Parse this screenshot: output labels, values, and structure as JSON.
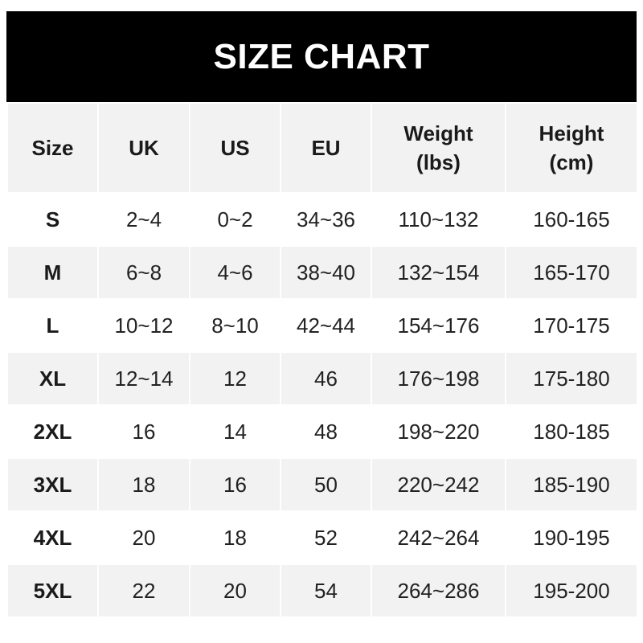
{
  "title": "SIZE CHART",
  "headers": [
    {
      "line1": "Size",
      "line2": ""
    },
    {
      "line1": "UK",
      "line2": ""
    },
    {
      "line1": "US",
      "line2": ""
    },
    {
      "line1": "EU",
      "line2": ""
    },
    {
      "line1": "Weight",
      "line2": "(lbs)"
    },
    {
      "line1": "Height",
      "line2": "(cm)"
    }
  ],
  "rows": [
    [
      "S",
      "2~4",
      "0~2",
      "34~36",
      "110~132",
      "160-165"
    ],
    [
      "M",
      "6~8",
      "4~6",
      "38~40",
      "132~154",
      "165-170"
    ],
    [
      "L",
      "10~12",
      "8~10",
      "42~44",
      "154~176",
      "170-175"
    ],
    [
      "XL",
      "12~14",
      "12",
      "46",
      "176~198",
      "175-180"
    ],
    [
      "2XL",
      "16",
      "14",
      "48",
      "198~220",
      "180-185"
    ],
    [
      "3XL",
      "18",
      "16",
      "50",
      "220~242",
      "185-190"
    ],
    [
      "4XL",
      "20",
      "18",
      "52",
      "242~264",
      "190-195"
    ],
    [
      "5XL",
      "22",
      "20",
      "54",
      "264~286",
      "195-200"
    ]
  ],
  "colors": {
    "title_bg": "#000000",
    "title_text": "#ffffff",
    "stripe": "#f2f2f2"
  }
}
